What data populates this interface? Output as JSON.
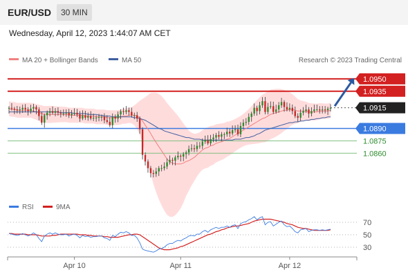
{
  "header": {
    "pair": "EUR/USD",
    "timeframe": "30 MIN",
    "timestamp": "Wednesday, April 12, 2023 1:44:07 AM CET"
  },
  "legend": {
    "ma20": "MA 20 + Bollinger Bands",
    "ma50": "MA 50",
    "credit": "Research © 2023 Trading Central",
    "rsi": "RSI",
    "rsi_ma": "9MA"
  },
  "colors": {
    "resistance": "#d32020",
    "support": "#3a7be0",
    "level_line": "#7fbf7f",
    "level_text": "#2e8b2e",
    "bull_candle": "#2f8a2f",
    "bear_candle": "#c62828",
    "ma20": "#f08080",
    "ma50": "#3f5fa0",
    "bollinger": "#ffd6d6",
    "current": "#222222"
  },
  "chart_data": [
    {
      "type": "candlestick",
      "levels": [
        {
          "value": 1.095,
          "label": "1.0950",
          "kind": "resistance"
        },
        {
          "value": 1.0935,
          "label": "1.0935",
          "kind": "resistance"
        },
        {
          "value": 1.0915,
          "label": "1.0915",
          "kind": "current"
        },
        {
          "value": 1.089,
          "label": "1.0890",
          "kind": "support"
        },
        {
          "value": 1.0875,
          "label": "1.0875",
          "kind": "minor"
        },
        {
          "value": 1.086,
          "label": "1.0860",
          "kind": "minor"
        }
      ],
      "x_ticks": [
        "Apr 10",
        "Apr 11",
        "Apr 12"
      ],
      "ylim": [
        1.0815,
        1.0965
      ],
      "close": [
        1.0915,
        1.0914,
        1.0913,
        1.0912,
        1.0913,
        1.0915,
        1.0913,
        1.0911,
        1.0914,
        1.0916,
        1.0913,
        1.0905,
        1.0897,
        1.0906,
        1.0909,
        1.0911,
        1.0909,
        1.0911,
        1.0909,
        1.0908,
        1.0908,
        1.0909,
        1.0906,
        1.0908,
        1.0909,
        1.0907,
        1.0902,
        1.0906,
        1.0903,
        1.0905,
        1.0902,
        1.0903,
        1.0903,
        1.0904,
        1.0904,
        1.09,
        1.0898,
        1.0894,
        1.0904,
        1.0902,
        1.0907,
        1.0911,
        1.091,
        1.0912,
        1.091,
        1.0906,
        1.0906,
        1.0902,
        1.0889,
        1.0858,
        1.085,
        1.0842,
        1.0836,
        1.0835,
        1.0838,
        1.0842,
        1.0842,
        1.0844,
        1.0849,
        1.0852,
        1.0851,
        1.0855,
        1.0857,
        1.0856,
        1.0859,
        1.0861,
        1.0865,
        1.0866,
        1.0865,
        1.0869,
        1.0869,
        1.0874,
        1.0876,
        1.0872,
        1.0877,
        1.0879,
        1.0882,
        1.088,
        1.0883,
        1.0883,
        1.0886,
        1.0884,
        1.0888,
        1.0889,
        1.0883,
        1.0893,
        1.0897,
        1.0898,
        1.0904,
        1.0908,
        1.0915,
        1.0911,
        1.0918,
        1.0923,
        1.091,
        1.0916,
        1.0917,
        1.091,
        1.0913,
        1.0918,
        1.0922,
        1.0916,
        1.0913,
        1.0915,
        1.0911,
        1.0905,
        1.0903,
        1.0909,
        1.0911,
        1.0913,
        1.0908,
        1.0911,
        1.0913,
        1.0913,
        1.0912,
        1.0913,
        1.0912,
        1.0914,
        1.0915
      ],
      "ma20": [
        1.0914,
        1.0913,
        1.0913,
        1.0912,
        1.0912,
        1.0912,
        1.0912,
        1.0912,
        1.0912,
        1.0911,
        1.091,
        1.0909,
        1.0908,
        1.0907,
        1.0907,
        1.0907,
        1.0907,
        1.0907,
        1.0907,
        1.0907,
        1.0907,
        1.0907,
        1.0906,
        1.0906,
        1.0906,
        1.0906,
        1.0906,
        1.0906,
        1.0905,
        1.0905,
        1.0905,
        1.0905,
        1.0904,
        1.0904,
        1.0904,
        1.0904,
        1.0903,
        1.0903,
        1.0903,
        1.0903,
        1.0903,
        1.0904,
        1.0905,
        1.0905,
        1.0906,
        1.0906,
        1.0906,
        1.0905,
        1.0903,
        1.0899,
        1.0894,
        1.0889,
        1.0884,
        1.0878,
        1.0873,
        1.0868,
        1.0863,
        1.0858,
        1.0853,
        1.085,
        1.0848,
        1.0847,
        1.0847,
        1.0847,
        1.0848,
        1.085,
        1.0851,
        1.0853,
        1.0855,
        1.0858,
        1.0861,
        1.0864,
        1.0866,
        1.0867,
        1.0869,
        1.087,
        1.0872,
        1.0873,
        1.0874,
        1.0875,
        1.0877,
        1.0878,
        1.088,
        1.0882,
        1.0884,
        1.0886,
        1.0888,
        1.089,
        1.0892,
        1.0894,
        1.0896,
        1.0898,
        1.09,
        1.0902,
        1.0903,
        1.0905,
        1.0907,
        1.0908,
        1.0909,
        1.091,
        1.0911,
        1.0912,
        1.0912,
        1.0913,
        1.0913,
        1.0912,
        1.0911,
        1.0911,
        1.0911,
        1.0911,
        1.091,
        1.091,
        1.091,
        1.091,
        1.0911,
        1.0911,
        1.0911,
        1.0911,
        1.0912
      ],
      "ma50": [
        1.091,
        1.091,
        1.091,
        1.091,
        1.091,
        1.091,
        1.091,
        1.091,
        1.091,
        1.091,
        1.091,
        1.091,
        1.091,
        1.091,
        1.091,
        1.091,
        1.091,
        1.091,
        1.091,
        1.0909,
        1.0909,
        1.0909,
        1.0909,
        1.0909,
        1.0908,
        1.0908,
        1.0908,
        1.0908,
        1.0908,
        1.0907,
        1.0907,
        1.0907,
        1.0907,
        1.0906,
        1.0906,
        1.0905,
        1.0905,
        1.0905,
        1.0904,
        1.0904,
        1.0904,
        1.0904,
        1.0904,
        1.0904,
        1.0904,
        1.0904,
        1.0903,
        1.0903,
        1.0902,
        1.0901,
        1.09,
        1.0898,
        1.0896,
        1.0894,
        1.0892,
        1.089,
        1.0889,
        1.0887,
        1.0886,
        1.0885,
        1.0884,
        1.0883,
        1.0882,
        1.0881,
        1.088,
        1.0879,
        1.0879,
        1.0878,
        1.0877,
        1.0877,
        1.0877,
        1.0876,
        1.0876,
        1.0876,
        1.0876,
        1.0876,
        1.0876,
        1.0876,
        1.0876,
        1.0876,
        1.0876,
        1.0876,
        1.0876,
        1.0877,
        1.0877,
        1.0877,
        1.0878,
        1.0879,
        1.0879,
        1.088,
        1.0881,
        1.0883,
        1.0884,
        1.0886,
        1.0888,
        1.0889,
        1.089,
        1.0891,
        1.0892,
        1.0893,
        1.0894,
        1.0895,
        1.0896,
        1.0897,
        1.0897,
        1.0898,
        1.0898,
        1.0899,
        1.0899,
        1.09,
        1.09,
        1.0901,
        1.0901,
        1.0902,
        1.0902,
        1.0903,
        1.0903,
        1.0904,
        1.0904
      ]
    },
    {
      "type": "line",
      "title": "RSI",
      "ylim": [
        20,
        80
      ],
      "y_ticks": [
        "70",
        "50",
        "30"
      ],
      "series": [
        {
          "name": "RSI",
          "values": [
            52,
            51,
            50,
            49,
            50,
            52,
            50,
            48,
            50,
            53,
            50,
            44,
            39,
            48,
            51,
            53,
            51,
            53,
            51,
            50,
            50,
            51,
            48,
            50,
            51,
            49,
            45,
            49,
            47,
            48,
            46,
            47,
            47,
            48,
            48,
            45,
            44,
            41,
            49,
            47,
            51,
            54,
            53,
            55,
            53,
            49,
            49,
            45,
            37,
            27,
            25,
            24,
            23,
            22,
            24,
            27,
            28,
            30,
            34,
            36,
            36,
            39,
            41,
            40,
            43,
            45,
            48,
            49,
            48,
            51,
            51,
            55,
            57,
            54,
            58,
            60,
            62,
            60,
            62,
            62,
            64,
            62,
            65,
            66,
            60,
            68,
            70,
            71,
            74,
            76,
            79,
            74,
            77,
            79,
            66,
            70,
            71,
            64,
            67,
            70,
            72,
            66,
            63,
            64,
            60,
            55,
            53,
            58,
            59,
            60,
            55,
            57,
            58,
            58,
            57,
            58,
            57,
            58,
            59
          ]
        },
        {
          "name": "9MA",
          "values": [
            52,
            52,
            51,
            51,
            51,
            51,
            51,
            50,
            50,
            50,
            50,
            49,
            48,
            48,
            48,
            48,
            49,
            49,
            50,
            51,
            51,
            51,
            51,
            51,
            51,
            51,
            50,
            50,
            50,
            49,
            49,
            48,
            48,
            48,
            48,
            47,
            47,
            46,
            46,
            46,
            46,
            47,
            48,
            49,
            50,
            50,
            51,
            51,
            50,
            47,
            44,
            41,
            38,
            35,
            32,
            29,
            27,
            26,
            26,
            26,
            27,
            28,
            29,
            31,
            32,
            34,
            36,
            38,
            40,
            42,
            44,
            46,
            48,
            50,
            51,
            53,
            55,
            56,
            58,
            59,
            61,
            62,
            63,
            64,
            64,
            65,
            66,
            67,
            68,
            70,
            72,
            73,
            74,
            75,
            75,
            75,
            75,
            74,
            73,
            72,
            71,
            70,
            68,
            67,
            66,
            64,
            62,
            61,
            60,
            60,
            59,
            58,
            57,
            57,
            57,
            57,
            57,
            57,
            58
          ]
        }
      ]
    }
  ]
}
